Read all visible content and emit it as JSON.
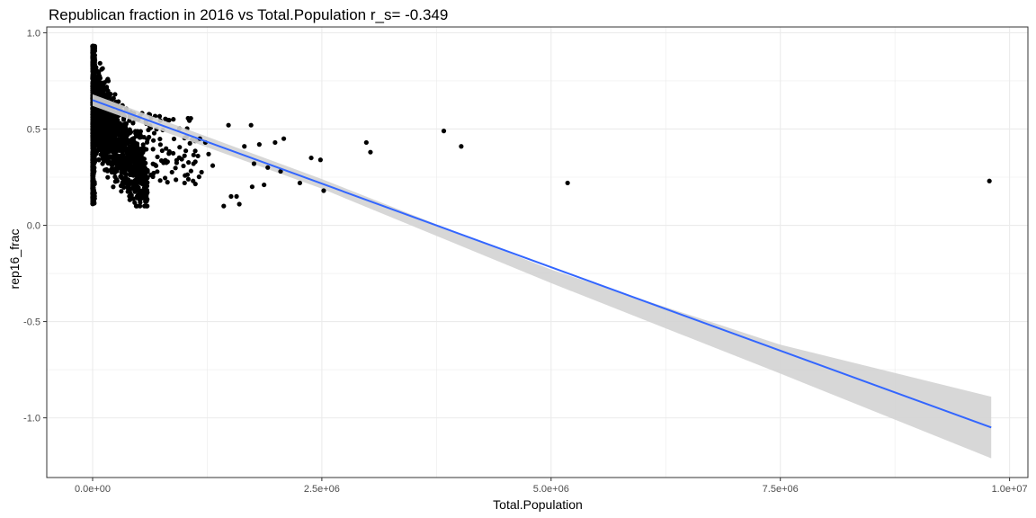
{
  "chart_data": {
    "type": "scatter",
    "title": "Republican fraction in 2016 vs Total.Population  r_s= -0.349",
    "xlabel": "Total.Population",
    "ylabel": "rep16_frac",
    "xlim": [
      -500000,
      10200000
    ],
    "ylim": [
      -1.31,
      1.03
    ],
    "x_ticks": [
      0,
      2500000,
      5000000,
      7500000,
      10000000
    ],
    "x_tick_labels": [
      "0.0e+00",
      "2.5e+06",
      "5.0e+06",
      "7.5e+06",
      "1.0e+07"
    ],
    "y_ticks": [
      -1.0,
      -0.5,
      0.0,
      0.5,
      1.0
    ],
    "y_tick_labels": [
      "-1.0",
      "-0.5",
      "0.0",
      "0.5",
      "1.0"
    ],
    "grid": true,
    "colors": {
      "points": "#000000",
      "fit_line": "#3366ff",
      "band": "#d3d3d3",
      "grid": "#ebebeb",
      "panel_border": "#333333"
    },
    "points": [
      [
        1818000,
        0.42
      ],
      [
        2085000,
        0.45
      ],
      [
        1990000,
        0.43
      ],
      [
        1728000,
        0.52
      ],
      [
        1482000,
        0.52
      ],
      [
        2384000,
        0.35
      ],
      [
        2485000,
        0.34
      ],
      [
        2985000,
        0.43
      ],
      [
        3030000,
        0.38
      ],
      [
        3830000,
        0.49
      ],
      [
        4020000,
        0.41
      ],
      [
        5180000,
        0.22
      ],
      [
        9780000,
        0.23
      ],
      [
        1600000,
        0.11
      ],
      [
        1430000,
        0.1
      ],
      [
        1510000,
        0.15
      ],
      [
        1570000,
        0.15
      ],
      [
        1740000,
        0.2
      ],
      [
        1870000,
        0.21
      ],
      [
        2260000,
        0.22
      ],
      [
        2520000,
        0.18
      ],
      [
        1910000,
        0.3
      ],
      [
        1760000,
        0.32
      ],
      [
        1655000,
        0.41
      ],
      [
        1265000,
        0.37
      ],
      [
        1310000,
        0.31
      ],
      [
        1230000,
        0.43
      ],
      [
        1170000,
        0.45
      ],
      [
        1120000,
        0.33
      ],
      [
        2050000,
        0.28
      ]
    ],
    "dense_cluster": {
      "x_range": [
        0,
        1000000
      ],
      "y_range": [
        0.04,
        0.95
      ]
    },
    "fit_line": {
      "x": [
        0,
        9800000
      ],
      "y": [
        0.65,
        -1.05
      ]
    },
    "confidence_band": {
      "x": [
        0,
        2500000,
        5000000,
        7500000,
        9800000
      ],
      "lower": [
        0.62,
        0.19,
        -0.3,
        -0.77,
        -1.21
      ],
      "upper": [
        0.68,
        0.24,
        -0.23,
        -0.62,
        -0.89
      ]
    }
  }
}
